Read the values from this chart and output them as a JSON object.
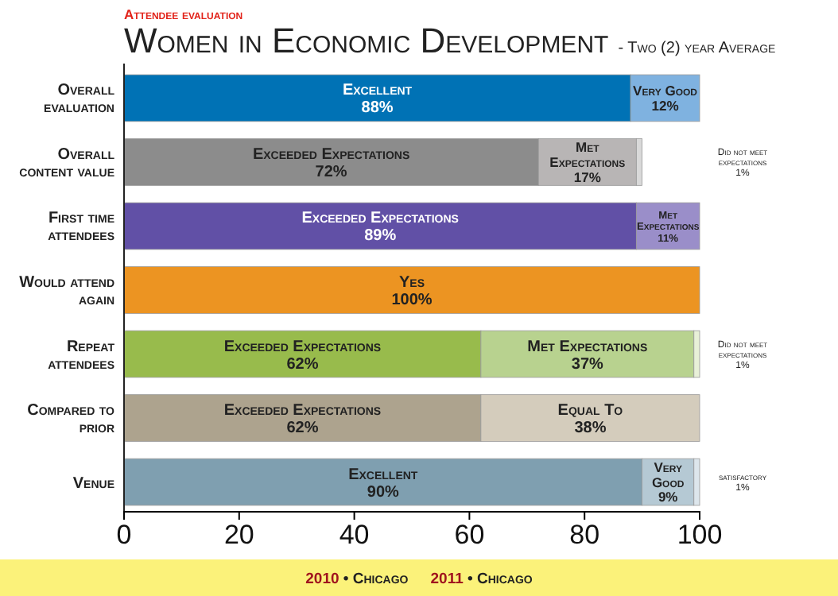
{
  "chart_data": {
    "type": "bar",
    "orientation": "horizontal",
    "stacked": true,
    "title": "Women in Economic Development",
    "subtitle": "- Two (2) year Average",
    "annotations": [
      "Attendee evaluation",
      "2010 • Chicago",
      "2011 • Chicago"
    ],
    "categories": [
      "Overall evaluation",
      "Overall content value",
      "First time attendees",
      "Would attend again",
      "Repeat attendees",
      "Compared to prior",
      "Venue"
    ],
    "series": [
      {
        "values": [
          88,
          72,
          89,
          100,
          62,
          62,
          90
        ],
        "colors": [
          "#0072b5",
          "#8c8c8c",
          "#6150a6",
          "#ec9422",
          "#98bb4c",
          "#ada38e",
          "#7f9fb0"
        ],
        "value_labels": [
          "Excellent\n88%",
          "Exceeded Expectations\n72%",
          "Exceeded Expectations\n89%",
          "Yes\n100%",
          "Exceeded Expectations\n62%",
          "Exceeded Expectations\n62%",
          "Excellent\n90%"
        ]
      },
      {
        "values": [
          12,
          17,
          11,
          null,
          37,
          38,
          9
        ],
        "colors": [
          "#7fb2e0",
          "#b8b5b5",
          "#9a8ec9",
          null,
          "#b8d28f",
          "#d4ccbc",
          "#b5c9d4"
        ],
        "value_labels": [
          "Very Good\n12%",
          "Met\nExpectations\n17%",
          "Met\nExpectations\n11%",
          null,
          "Met Expectations\n37%",
          "Equal To\n38%",
          "Very\nGood\n9%"
        ]
      },
      {
        "values": [
          null,
          1,
          null,
          null,
          1,
          null,
          1
        ],
        "colors": [
          null,
          "#d9d9d9",
          null,
          null,
          "#e8f0d8",
          null,
          "#dde6ec"
        ],
        "value_labels": [
          null,
          "Did not meet\nexpectations\n1%",
          null,
          null,
          "Did not meet\nexpectations\n1%",
          null,
          "satisfactory\n1%"
        ]
      }
    ],
    "xlim": [
      0,
      100
    ],
    "xticks": [
      0,
      20,
      40,
      60,
      80,
      100
    ],
    "grid": false
  }
}
